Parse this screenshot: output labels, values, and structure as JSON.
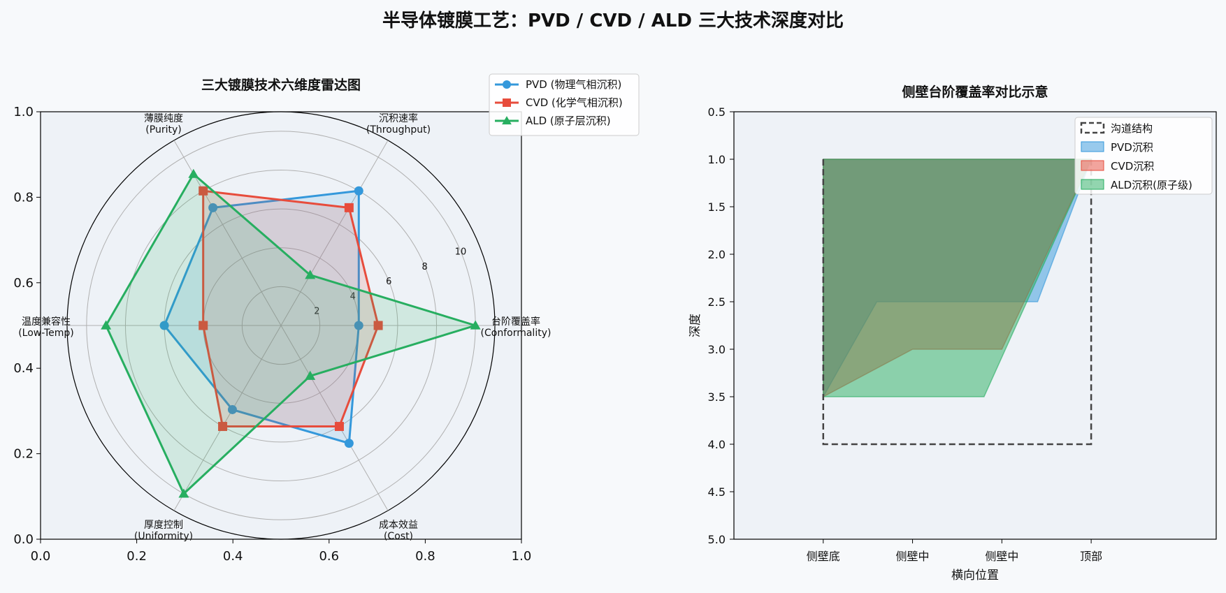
{
  "title": "半导体镀膜工艺：PVD / CVD / ALD 三大技术深度对比",
  "colors": {
    "pvd": "#3498db",
    "cvd": "#e74c3c",
    "ald": "#27ae60",
    "trench": "#444444",
    "panel_bg": "#eef2f7"
  },
  "chart_data": [
    {
      "type": "radar",
      "title": "三大镀膜技术六维度雷达图",
      "categories": [
        "台阶覆盖率\n(Conformality)",
        "沉积速率\n(Throughput)",
        "薄膜纯度\n(Purity)",
        "温度兼容性\n(Low-Temp)",
        "厚度控制\n(Uniformity)",
        "成本效益\n(Cost)"
      ],
      "r_ticks": [
        "2",
        "4",
        "6",
        "8",
        "10"
      ],
      "r_max": 11,
      "frame_ticks_x": [
        "0.0",
        "0.2",
        "0.4",
        "0.6",
        "0.8",
        "1.0"
      ],
      "frame_ticks_y": [
        "0.0",
        "0.2",
        "0.4",
        "0.6",
        "0.8",
        "1.0"
      ],
      "legend_position": "top-right",
      "series": [
        {
          "name": "PVD (物理气相沉积)",
          "color": "#3498db",
          "marker": "circle",
          "values": [
            4,
            8,
            7,
            6,
            5,
            7
          ]
        },
        {
          "name": "CVD (化学气相沉积)",
          "color": "#e74c3c",
          "marker": "square",
          "values": [
            5,
            7,
            8,
            4,
            6,
            6
          ]
        },
        {
          "name": "ALD (原子层沉积)",
          "color": "#27ae60",
          "marker": "triangle",
          "values": [
            10,
            3,
            9,
            9,
            10,
            3
          ]
        }
      ]
    },
    {
      "type": "area",
      "title": "侧壁台阶覆盖率对比示意",
      "xlabel": "横向位置",
      "ylabel": "深度",
      "x_tick_labels": [
        "侧壁底",
        "侧壁中",
        "侧壁中",
        "顶部"
      ],
      "x_ticks": [
        0,
        1,
        2,
        3
      ],
      "y_ticks": [
        "0.5",
        "1.0",
        "1.5",
        "2.0",
        "2.5",
        "3.0",
        "3.5",
        "4.0",
        "4.5",
        "5.0"
      ],
      "xlim": [
        -1,
        4.4
      ],
      "ylim": [
        5,
        0.5
      ],
      "y_inverted": true,
      "legend_position": "top-right",
      "trench": {
        "name": "沟道结构",
        "x": [
          0,
          0,
          3,
          3
        ],
        "y": [
          1,
          4,
          4,
          1
        ]
      },
      "series": [
        {
          "name": "PVD沉积",
          "color": "#3498db",
          "x": [
            0,
            0.6,
            2.4,
            3
          ],
          "top": [
            3.5,
            2.5,
            2.5,
            1
          ],
          "base": [
            1,
            1,
            1,
            1
          ]
        },
        {
          "name": "CVD沉积",
          "color": "#e74c3c",
          "x": [
            0,
            1,
            2,
            3
          ],
          "top": [
            3.5,
            3,
            3,
            1
          ],
          "base": [
            1,
            1,
            1,
            1
          ]
        },
        {
          "name": "ALD沉积(原子级)",
          "color": "#27ae60",
          "x": [
            0,
            1.8,
            3
          ],
          "top": [
            3.5,
            3.5,
            1
          ],
          "base": [
            1,
            1,
            1
          ]
        }
      ]
    }
  ]
}
